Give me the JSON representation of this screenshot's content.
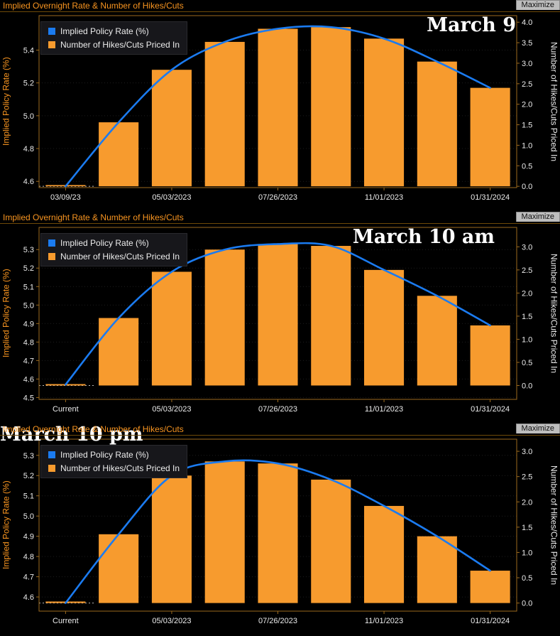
{
  "ui": {
    "maximize_label": "Maximize"
  },
  "chart_data": [
    {
      "type": "bar+line",
      "title": "Implied Overnight Rate & Number of Hikes/Cuts",
      "annotation": "March 9",
      "legend": [
        {
          "label": "Implied Policy Rate (%)",
          "color": "#1b7bf0"
        },
        {
          "label": "Number of Hikes/Cuts Priced In",
          "color": "#f79b2e"
        }
      ],
      "categories": [
        "03/09/23",
        "",
        "05/03/2023",
        "",
        "07/26/2023",
        "",
        "11/01/2023",
        "",
        "01/31/2024"
      ],
      "series": [
        {
          "name": "Implied Policy Rate (%)",
          "type": "line",
          "axis": "left",
          "values": [
            4.57,
            4.96,
            5.28,
            5.45,
            5.53,
            5.54,
            5.47,
            5.33,
            5.17
          ]
        },
        {
          "name": "Number of Hikes/Cuts Priced In",
          "type": "bar",
          "axis": "right",
          "values": [
            0.03,
            1.56,
            2.84,
            3.52,
            3.84,
            3.88,
            3.6,
            3.04,
            2.4
          ]
        }
      ],
      "left_axis": {
        "label": "Implied Policy Rate (%)",
        "ticks": [
          4.6,
          4.8,
          5.0,
          5.2,
          5.4
        ],
        "min": 4.562,
        "max": 5.61
      },
      "right_axis": {
        "label": "Number of Hikes/Cuts Priced In",
        "ticks": [
          0.0,
          0.5,
          1.0,
          1.5,
          2.0,
          2.5,
          3.0,
          3.5,
          4.0
        ],
        "base": 4.57,
        "per_unit": 0.25
      }
    },
    {
      "type": "bar+line",
      "title": "Implied Overnight Rate & Number of Hikes/Cuts",
      "annotation": "March 10 am",
      "legend": [
        {
          "label": "Implied Policy Rate (%)",
          "color": "#1b7bf0"
        },
        {
          "label": "Number of Hikes/Cuts Priced In",
          "color": "#f79b2e"
        }
      ],
      "categories": [
        "Current",
        "",
        "05/03/2023",
        "",
        "07/26/2023",
        "",
        "11/01/2023",
        "",
        "01/31/2024"
      ],
      "series": [
        {
          "name": "Implied Policy Rate (%)",
          "type": "line",
          "axis": "left",
          "values": [
            4.57,
            4.93,
            5.18,
            5.3,
            5.33,
            5.32,
            5.19,
            5.05,
            4.89
          ]
        },
        {
          "name": "Number of Hikes/Cuts Priced In",
          "type": "bar",
          "axis": "right",
          "values": [
            0.03,
            1.46,
            2.46,
            2.94,
            3.06,
            3.02,
            2.5,
            1.94,
            1.3
          ]
        }
      ],
      "left_axis": {
        "label": "Implied Policy Rate (%)",
        "ticks": [
          4.5,
          4.6,
          4.7,
          4.8,
          4.9,
          5.0,
          5.1,
          5.2,
          5.3
        ],
        "min": 4.49,
        "max": 5.42
      },
      "right_axis": {
        "label": "Number of Hikes/Cuts Priced In",
        "ticks": [
          0.0,
          0.5,
          1.0,
          1.5,
          2.0,
          2.5,
          3.0
        ],
        "base": 4.565,
        "per_unit": 0.25
      }
    },
    {
      "type": "bar+line",
      "title": "Implied Overnight Rate & Number of Hikes/Cuts",
      "annotation": "March 10 pm",
      "legend": [
        {
          "label": "Implied Policy Rate (%)",
          "color": "#1b7bf0"
        },
        {
          "label": "Number of Hikes/Cuts Priced In",
          "color": "#f79b2e"
        }
      ],
      "categories": [
        "Current",
        "",
        "05/03/2023",
        "",
        "07/26/2023",
        "",
        "11/01/2023",
        "",
        "01/31/2024"
      ],
      "series": [
        {
          "name": "Implied Policy Rate (%)",
          "type": "line",
          "axis": "left",
          "values": [
            4.57,
            4.91,
            5.2,
            5.27,
            5.26,
            5.18,
            5.05,
            4.9,
            4.73
          ]
        },
        {
          "name": "Number of Hikes/Cuts Priced In",
          "type": "bar",
          "axis": "right",
          "values": [
            0.03,
            1.36,
            2.52,
            2.8,
            2.76,
            2.44,
            1.92,
            1.32,
            0.64
          ]
        }
      ],
      "left_axis": {
        "label": "Implied Policy Rate (%)",
        "ticks": [
          4.6,
          4.7,
          4.8,
          4.9,
          5.0,
          5.1,
          5.2,
          5.3
        ],
        "min": 4.53,
        "max": 5.38
      },
      "right_axis": {
        "label": "Number of Hikes/Cuts Priced In",
        "ticks": [
          0.0,
          0.5,
          1.0,
          1.5,
          2.0,
          2.5,
          3.0
        ],
        "base": 4.57,
        "per_unit": 0.25
      }
    }
  ]
}
